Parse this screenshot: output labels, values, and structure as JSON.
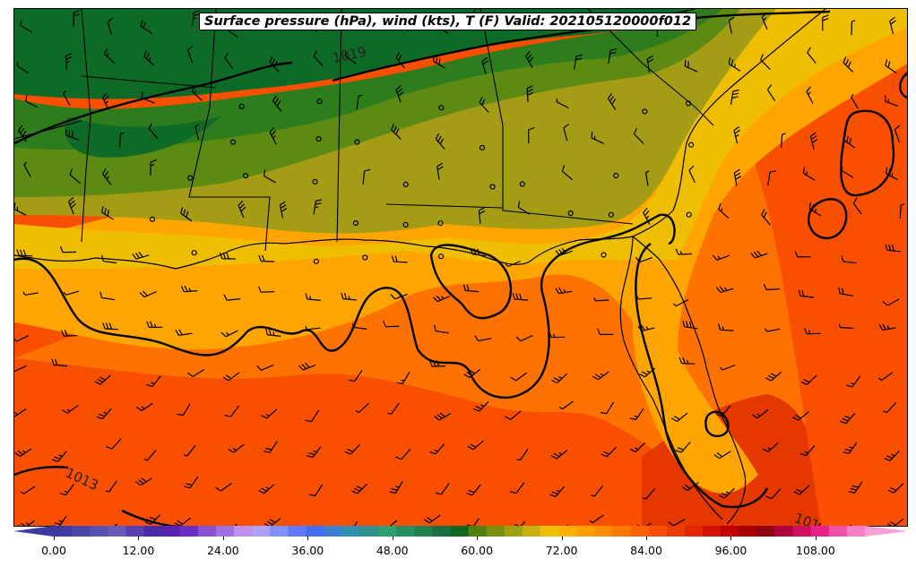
{
  "title": "Surface pressure (hPa), wind (kts), T (F) Valid: 202105120000f012",
  "isobar_labels": [
    "1019",
    "1013",
    "101"
  ],
  "colorbar": {
    "tick_labels": [
      "0.00",
      "12.00",
      "24.00",
      "36.00",
      "48.00",
      "60.00",
      "72.00",
      "84.00",
      "96.00",
      "108.00"
    ],
    "colors": [
      "#3c3ca0",
      "#4a45a8",
      "#5850b0",
      "#6a5ab8",
      "#5a3fb0",
      "#4b2aa8",
      "#5a20b0",
      "#6a2fc0",
      "#8a50d0",
      "#a070e0",
      "#c090f0",
      "#b0a0ff",
      "#8090ff",
      "#6078ff",
      "#4070f0",
      "#3a80d0",
      "#3090b0",
      "#309090",
      "#30a070",
      "#289060",
      "#208050",
      "#1a7040",
      "#106820",
      "#508010",
      "#7a9010",
      "#a0a010",
      "#c8b010",
      "#f0c000",
      "#ffb000",
      "#ffa000",
      "#ff8c00",
      "#ff7800",
      "#ff6400",
      "#f85000",
      "#e83c00",
      "#e02800",
      "#d01400",
      "#c00000",
      "#a80000",
      "#900010",
      "#b00040",
      "#d01060",
      "#e8208a",
      "#f050a8",
      "#f880c8"
    ]
  },
  "colors": {
    "dark_green": "#0e6a27",
    "green": "#2d7d1c",
    "olive": "#5c8a12",
    "olive_yellow": "#a39c14",
    "yellow": "#f0be00",
    "light_orange": "#ffa500",
    "orange": "#ff7200",
    "deep_orange": "#f85000",
    "red_orange": "#e43800"
  }
}
